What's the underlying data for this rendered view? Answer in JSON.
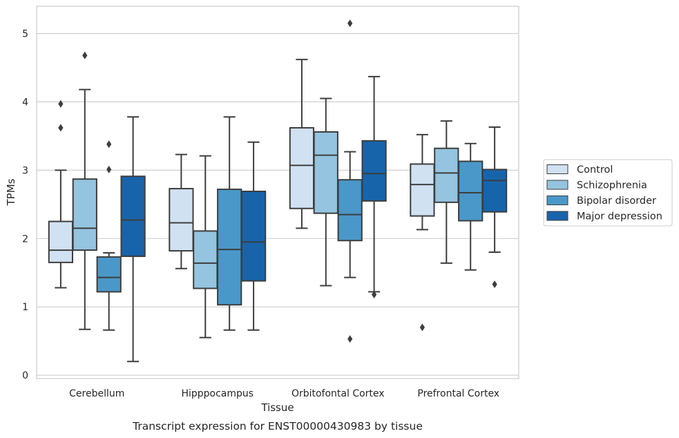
{
  "caption": "Transcript expression for ENST00000430983 by tissue",
  "chart_data": {
    "type": "box",
    "xlabel": "Tissue",
    "ylabel": "TPMs",
    "ylim": [
      -0.05,
      5.4
    ],
    "yticks": [
      0,
      1,
      2,
      3,
      4,
      5
    ],
    "grid": "horizontal",
    "legend_position": "right",
    "categories": [
      "Cerebellum",
      "Hipppocampus",
      "Orbitofontal Cortex",
      "Prefrontal Cortex"
    ],
    "series": [
      {
        "name": "Control",
        "color": "#d0e1f2",
        "boxes": [
          {
            "whislo": 1.28,
            "q1": 1.65,
            "med": 1.83,
            "q3": 2.25,
            "whishi": 3.0,
            "fliers": [
              3.62,
              3.97
            ]
          },
          {
            "whislo": 1.56,
            "q1": 1.82,
            "med": 2.23,
            "q3": 2.73,
            "whishi": 3.23,
            "fliers": []
          },
          {
            "whislo": 2.15,
            "q1": 2.44,
            "med": 3.07,
            "q3": 3.62,
            "whishi": 4.62,
            "fliers": []
          },
          {
            "whislo": 2.13,
            "q1": 2.33,
            "med": 2.79,
            "q3": 3.09,
            "whishi": 3.52,
            "fliers": [
              0.7
            ]
          }
        ]
      },
      {
        "name": "Schizophrenia",
        "color": "#94c4df",
        "boxes": [
          {
            "whislo": 0.67,
            "q1": 1.83,
            "med": 2.15,
            "q3": 2.87,
            "whishi": 4.18,
            "fliers": [
              4.68
            ]
          },
          {
            "whislo": 0.55,
            "q1": 1.27,
            "med": 1.64,
            "q3": 2.11,
            "whishi": 3.21,
            "fliers": []
          },
          {
            "whislo": 1.31,
            "q1": 2.37,
            "med": 3.22,
            "q3": 3.56,
            "whishi": 4.05,
            "fliers": []
          },
          {
            "whislo": 1.64,
            "q1": 2.53,
            "med": 2.96,
            "q3": 3.32,
            "whishi": 3.72,
            "fliers": []
          }
        ]
      },
      {
        "name": "Bipolar disorder",
        "color": "#4a98c9",
        "boxes": [
          {
            "whislo": 0.66,
            "q1": 1.22,
            "med": 1.43,
            "q3": 1.73,
            "whishi": 1.79,
            "fliers": [
              3.01,
              3.38
            ]
          },
          {
            "whislo": 0.66,
            "q1": 1.03,
            "med": 1.84,
            "q3": 2.72,
            "whishi": 3.78,
            "fliers": []
          },
          {
            "whislo": 1.43,
            "q1": 1.97,
            "med": 2.35,
            "q3": 2.86,
            "whishi": 3.27,
            "fliers": [
              0.53,
              5.15
            ]
          },
          {
            "whislo": 1.54,
            "q1": 2.26,
            "med": 2.67,
            "q3": 3.13,
            "whishi": 3.39,
            "fliers": []
          }
        ]
      },
      {
        "name": "Major depression",
        "color": "#1764ab",
        "boxes": [
          {
            "whislo": 0.2,
            "q1": 1.74,
            "med": 2.27,
            "q3": 2.91,
            "whishi": 3.78,
            "fliers": []
          },
          {
            "whislo": 0.66,
            "q1": 1.38,
            "med": 1.95,
            "q3": 2.69,
            "whishi": 3.41,
            "fliers": []
          },
          {
            "whislo": 1.22,
            "q1": 2.55,
            "med": 2.95,
            "q3": 3.43,
            "whishi": 4.37,
            "fliers": [
              1.18
            ]
          },
          {
            "whislo": 1.8,
            "q1": 2.39,
            "med": 2.85,
            "q3": 3.01,
            "whishi": 3.63,
            "fliers": [
              1.33
            ]
          }
        ]
      }
    ]
  }
}
